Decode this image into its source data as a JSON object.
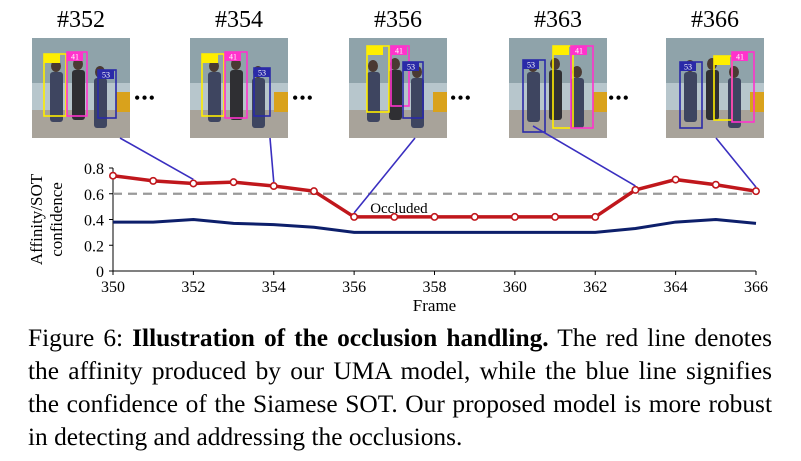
{
  "frames": [
    {
      "label": "#352",
      "boxes": [
        {
          "id": "",
          "color": "#ffee00"
        },
        {
          "id": "41",
          "color": "#ff33cc"
        },
        {
          "id": "53",
          "color": "#2a2aa8"
        }
      ]
    },
    {
      "label": "#354",
      "boxes": [
        {
          "id": "",
          "color": "#ffee00"
        },
        {
          "id": "41",
          "color": "#ff33cc"
        },
        {
          "id": "53",
          "color": "#2a2aa8"
        }
      ]
    },
    {
      "label": "#356",
      "boxes": [
        {
          "id": "",
          "color": "#ffee00"
        },
        {
          "id": "41",
          "color": "#ff33cc"
        },
        {
          "id": "53",
          "color": "#2a2aa8"
        }
      ]
    },
    {
      "label": "#363",
      "boxes": [
        {
          "id": "53",
          "color": "#2a2aa8"
        },
        {
          "id": "",
          "color": "#ffee00"
        },
        {
          "id": "41",
          "color": "#ff33cc"
        }
      ]
    },
    {
      "label": "#366",
      "boxes": [
        {
          "id": "53",
          "color": "#2a2aa8"
        },
        {
          "id": "",
          "color": "#ffee00"
        },
        {
          "id": "41",
          "color": "#ff33cc"
        }
      ]
    }
  ],
  "ellipsis": "•••",
  "chart_data": {
    "type": "line",
    "x": [
      350,
      351,
      352,
      353,
      354,
      355,
      356,
      357,
      358,
      359,
      360,
      361,
      362,
      363,
      364,
      365,
      366
    ],
    "series": [
      {
        "name": "affinity",
        "color": "#c0171c",
        "marker": "circle",
        "values": [
          0.74,
          0.7,
          0.68,
          0.69,
          0.66,
          0.62,
          0.42,
          0.42,
          0.42,
          0.42,
          0.42,
          0.42,
          0.42,
          0.63,
          0.71,
          0.67,
          0.62
        ]
      },
      {
        "name": "SOT confidence",
        "color": "#0d1f6b",
        "marker": "none",
        "values": [
          0.38,
          0.38,
          0.4,
          0.37,
          0.36,
          0.34,
          0.3,
          0.3,
          0.3,
          0.3,
          0.3,
          0.3,
          0.3,
          0.33,
          0.38,
          0.4,
          0.37
        ]
      }
    ],
    "threshold": {
      "value": 0.6,
      "label": "Occluded",
      "color": "#9a9a9a"
    },
    "xlim": [
      350,
      366
    ],
    "ylim": [
      0,
      0.8
    ],
    "xticks": [
      350,
      352,
      354,
      356,
      358,
      360,
      362,
      364,
      366
    ],
    "yticks": [
      0,
      0.2,
      0.4,
      0.6,
      0.8
    ],
    "ytick_labels": [
      "0",
      "0.2",
      "0.4",
      "0.6",
      "0.8"
    ],
    "xlabel": "Frame",
    "ylabel_line1": "Affinity/SOT",
    "ylabel_line2": "confidence",
    "connector_color": "#3a2fc0",
    "connectors": [
      352,
      354,
      356,
      363,
      366
    ]
  },
  "caption": {
    "prefix": "Figure 6: ",
    "bold": "Illustration of the occlusion handling.",
    "text": " The red line denotes the affinity produced by our UMA model, while the blue line signifies the confidence of the Siamese SOT. Our proposed model is more robust in detecting and addressing the occlusions."
  }
}
